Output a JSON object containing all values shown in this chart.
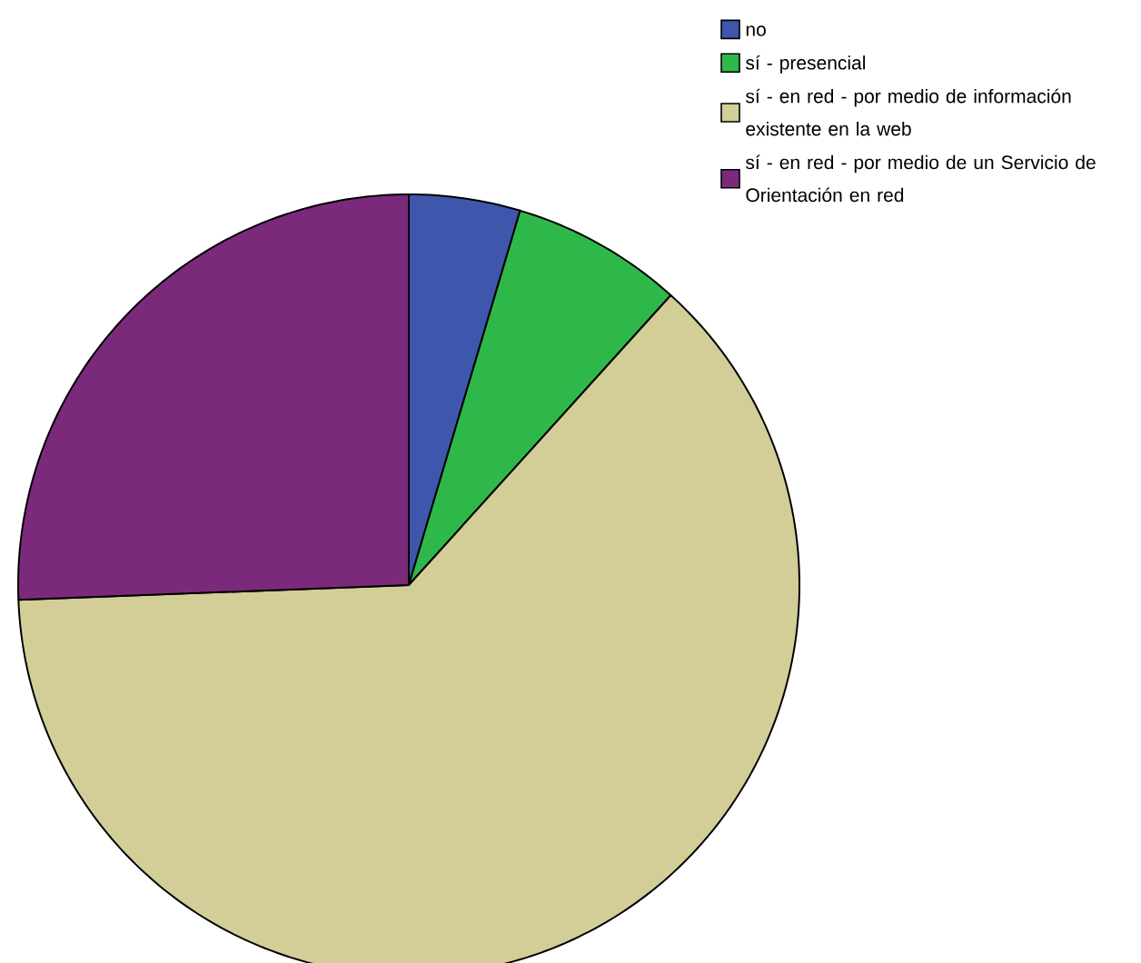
{
  "chart_data": {
    "type": "pie",
    "categories": [
      "no",
      "sí - presencial",
      "sí - en red - por medio de información existente en la web",
      "sí - en red - por medio de un Servicio de Orientación en red"
    ],
    "values": [
      4.6,
      7.1,
      62.7,
      25.6
    ],
    "colors": [
      "#3f56ad",
      "#2fb84a",
      "#d3cd98",
      "#7b2a7b"
    ],
    "legend": "top right"
  }
}
